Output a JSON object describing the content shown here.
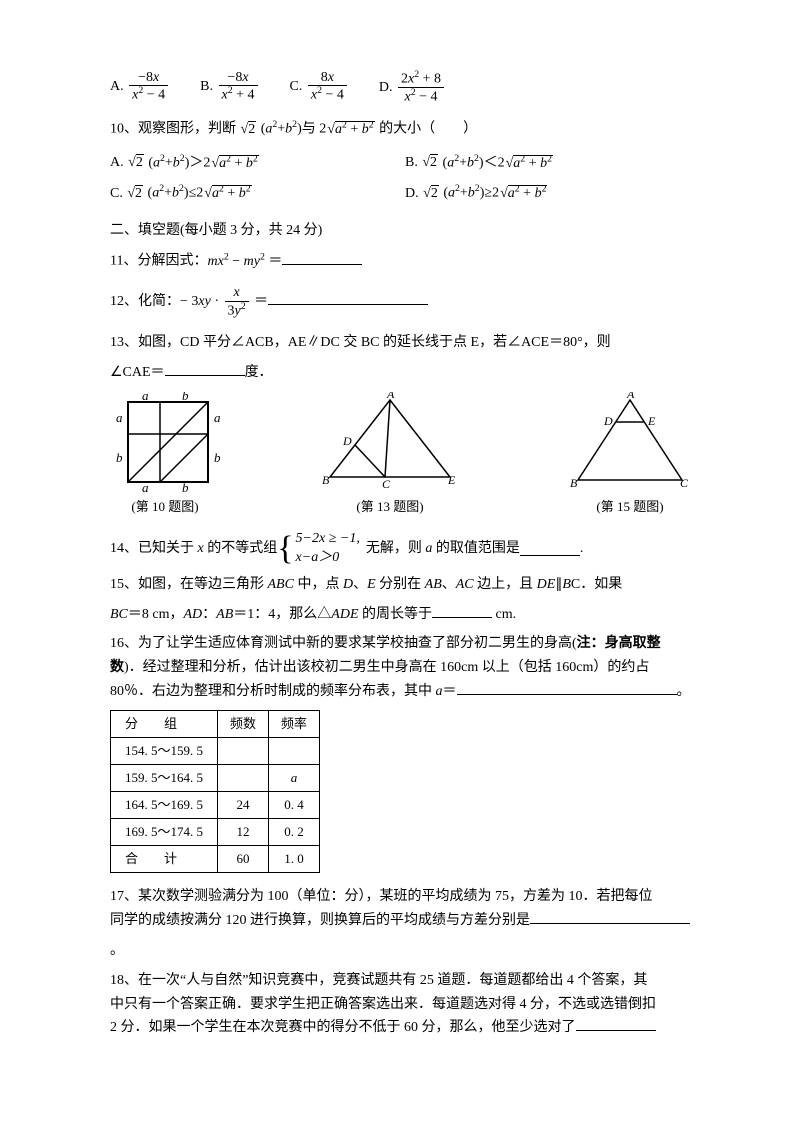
{
  "q9": {
    "options": {
      "A": {
        "label": "A.",
        "num": "−8<span class='italic'>x</span>",
        "den": "<span class='italic'>x</span><sup>2</sup> − 4"
      },
      "B": {
        "label": "B.",
        "num": "−8<span class='italic'>x</span>",
        "den": "<span class='italic'>x</span><sup>2</sup> + 4"
      },
      "C": {
        "label": "C.",
        "num": "8<span class='italic'>x</span>",
        "den": "<span class='italic'>x</span><sup>2</sup> − 4"
      },
      "D": {
        "label": "D.",
        "num": "2<span class='italic'>x</span><sup>2</sup> + 8",
        "den": "<span class='italic'>x</span><sup>2</sup> − 4"
      }
    }
  },
  "q10": {
    "stem_prefix": "10、观察图形，判断",
    "stem_mid": "与",
    "stem_suffix": "的大小（　　）",
    "options": {
      "A": {
        "label": "A.",
        "op": "＞"
      },
      "B": {
        "label": "B.",
        "op": "＜"
      },
      "C": {
        "label": "C.",
        "op": "≤"
      },
      "D": {
        "label": "D.",
        "op": "≥"
      }
    }
  },
  "section2_header": "二、填空题(每小题 3 分，共 24 分)",
  "q11": {
    "stem": "11、分解因式：",
    "expr": "<span class='italic'>mx</span><sup>2</sup> − <span class='italic'>my</span><sup>2</sup> ＝"
  },
  "q12": {
    "stem": "12、化简：",
    "prefix": "− 3<span class='italic'>xy</span> ·",
    "fr_num": "<span class='italic'>x</span>",
    "fr_den": "3<span class='italic'>y</span><sup>2</sup>",
    "eq": " ＝"
  },
  "q13": {
    "line1": "13、如图，CD 平分∠ACB，AE∥DC 交 BC 的延长线于点 E，若∠ACE＝80°，则",
    "line2": "∠CAE＝",
    "unit": "度．"
  },
  "fig_caps": {
    "f10": "(第 10 题图)",
    "f13": "(第 13 题图)",
    "f15": "(第 15 题图)"
  },
  "q14": {
    "stem": "14、已知关于 <span class='italic'>x</span> 的不等式组",
    "case1": "5−2<span class='italic'>x</span> ≥ −1,",
    "case2": "<span class='italic'>x</span>−<span class='italic'>a</span>＞0",
    "tail": "无解，则 <span class='italic'>a</span> 的取值范围是",
    "end": "."
  },
  "q15": {
    "line1": "15、如图，在等边三角形 <span class='italic'>ABC</span> 中，点 <span class='italic'>D</span>、<span class='italic'>E</span> 分别在 <span class='italic'>AB</span>、<span class='italic'>AC</span> 边上，且 <span class='italic'>DE</span>∥<span class='italic'>B</span>C．如果",
    "line2": "<span class='italic'>BC</span>＝8 cm，<span class='italic'>AD</span>：<span class='italic'>AB</span>＝1：4，那么△<span class='italic'>ADE</span> 的周长等于",
    "unit": " cm."
  },
  "q16": {
    "line1": "16、为了让学生适应体育测试中新的要求某学校抽查了部分初二男生的身高(<b>注：身高取整</b>",
    "line2": "<b>数</b>)．经过整理和分析，估计出该校初二男生中身高在 160cm 以上（包括 160cm）的约占",
    "line3": "80％．右边为整理和分析时制成的频率分布表，其中 <span class='italic'>a</span>＝",
    "end": "。"
  },
  "freq_table": {
    "columns": [
      "分　　组",
      "频数",
      "频率"
    ],
    "rows": [
      [
        "154. 5～159. 5",
        "",
        ""
      ],
      [
        "159. 5～164. 5",
        "",
        "a"
      ],
      [
        "164. 5～169. 5",
        "24",
        "0. 4"
      ],
      [
        "169. 5～174. 5",
        "12",
        "0. 2"
      ],
      [
        "合　　计",
        "60",
        "1. 0"
      ]
    ]
  },
  "q17": {
    "line1": "17、某次数学测验满分为 100（单位：分），某班的平均成绩为 75，方差为 10．若把每位",
    "line2": "同学的成绩按满分 120 进行换算，则换算后的平均成绩与方差分别是",
    "line3": "。"
  },
  "q18": {
    "line1": "18、在一次“人与自然”知识竞赛中，竞赛试题共有 25 道题．每道题都给出 4 个答案，其",
    "line2": "中只有一个答案正确．要求学生把正确答案选出来．每道题选对得 4 分，不选或选错倒扣",
    "line3": "2 分．如果一个学生在本次竞赛中的得分不低于 60 分，那么，他至少选对了"
  }
}
